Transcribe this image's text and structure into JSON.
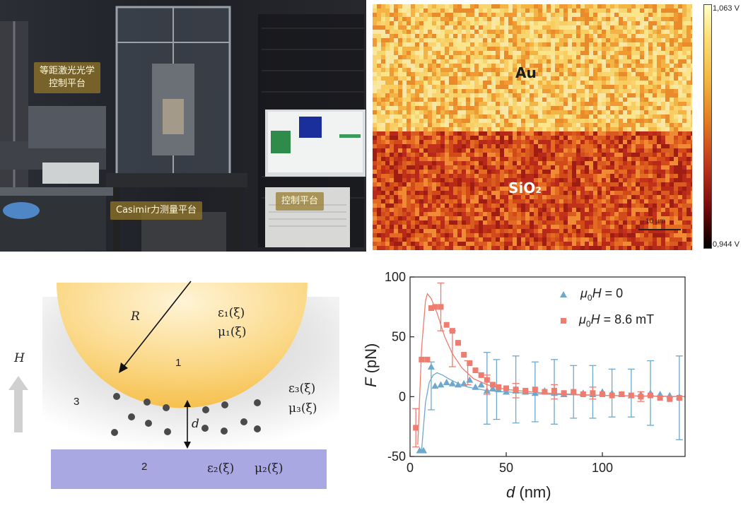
{
  "panelA": {
    "labels": {
      "optics": "等距激光光学\n控制平台",
      "casimir": "Casimir力测量平台",
      "control": "控制平台"
    }
  },
  "panelB": {
    "regions": {
      "top": "Au",
      "bottom": "SiO₂"
    },
    "colorbar": {
      "max": "1,063 V",
      "min": "0,944 V"
    },
    "scalebar": "10 µm",
    "colors": {
      "top_base": "#f6b64a",
      "bottom_base": "#d8501c"
    }
  },
  "panelC": {
    "sphere_number": "1",
    "plate_number": "2",
    "medium_number": "3",
    "radius_label": "R",
    "field_label": "H",
    "gap_label": "d",
    "eps1": "ε₁(ξ)",
    "mu1": "μ₁(ξ)",
    "eps3": "ε₃(ξ)",
    "mu3": "μ₃(ξ)",
    "eps2": "ε₂(ξ)",
    "mu2": "μ₂(ξ)",
    "colors": {
      "sphere": "#f7c968",
      "plate": "#a9a8e3",
      "particles": "#4a4a4a",
      "arrow": "#d0d0d0"
    }
  },
  "chart_data": {
    "type": "scatter",
    "xlabel_var": "d",
    "xlabel_unit": "(nm)",
    "ylabel_var": "F",
    "ylabel_unit": "(pN)",
    "xlim": [
      0,
      143
    ],
    "ylim": [
      -50,
      100
    ],
    "xticks": [
      0,
      50,
      100
    ],
    "yticks": [
      -50,
      0,
      50,
      100
    ],
    "legend_position": "top-right",
    "series": [
      {
        "name_prefix": "μ",
        "name_sub": "0",
        "name_var": "H",
        "name_rest": " = 0",
        "marker": "triangle",
        "color": "#6fa8cd",
        "points": [
          {
            "x": 5,
            "y": -45
          },
          {
            "x": 7,
            "y": -45
          },
          {
            "x": 11,
            "y": 25
          },
          {
            "x": 13,
            "y": 9
          },
          {
            "x": 16,
            "y": 10
          },
          {
            "x": 19,
            "y": 12
          },
          {
            "x": 22,
            "y": 11
          },
          {
            "x": 25,
            "y": 10
          },
          {
            "x": 28,
            "y": 11
          },
          {
            "x": 31,
            "y": 14
          },
          {
            "x": 34,
            "y": 8
          },
          {
            "x": 37,
            "y": 10
          },
          {
            "x": 40,
            "y": 5
          },
          {
            "x": 43,
            "y": 7
          },
          {
            "x": 46,
            "y": 6
          },
          {
            "x": 50,
            "y": 4
          },
          {
            "x": 55,
            "y": 5
          },
          {
            "x": 60,
            "y": 4
          },
          {
            "x": 65,
            "y": 3
          },
          {
            "x": 70,
            "y": 5
          },
          {
            "x": 75,
            "y": 3
          },
          {
            "x": 80,
            "y": 2
          },
          {
            "x": 85,
            "y": 4
          },
          {
            "x": 90,
            "y": 3
          },
          {
            "x": 95,
            "y": 2
          },
          {
            "x": 100,
            "y": 4
          },
          {
            "x": 105,
            "y": 3
          },
          {
            "x": 110,
            "y": 2
          },
          {
            "x": 115,
            "y": 1
          },
          {
            "x": 120,
            "y": 2
          },
          {
            "x": 125,
            "y": 3
          },
          {
            "x": 130,
            "y": 2
          },
          {
            "x": 135,
            "y": 1
          },
          {
            "x": 140,
            "y": 0
          }
        ],
        "errorbars": [
          {
            "x": 11,
            "y": 9,
            "err": 20
          },
          {
            "x": 40,
            "y": 7,
            "err": 30
          },
          {
            "x": 45,
            "y": 6,
            "err": 25
          },
          {
            "x": 55,
            "y": 6,
            "err": 28
          },
          {
            "x": 65,
            "y": 4,
            "err": 25
          },
          {
            "x": 75,
            "y": 4,
            "err": 27
          },
          {
            "x": 85,
            "y": 4,
            "err": 22
          },
          {
            "x": 95,
            "y": 4,
            "err": 22
          },
          {
            "x": 105,
            "y": 3,
            "err": 20
          },
          {
            "x": 115,
            "y": 3,
            "err": 20
          },
          {
            "x": 125,
            "y": 3,
            "err": 27
          },
          {
            "x": 140,
            "y": -1,
            "err": 35
          }
        ],
        "fit": [
          {
            "x": 6,
            "y": -45
          },
          {
            "x": 8,
            "y": -5
          },
          {
            "x": 10,
            "y": 12
          },
          {
            "x": 12,
            "y": 18
          },
          {
            "x": 14,
            "y": 20
          },
          {
            "x": 17,
            "y": 18
          },
          {
            "x": 20,
            "y": 15
          },
          {
            "x": 25,
            "y": 11
          },
          {
            "x": 30,
            "y": 8
          },
          {
            "x": 40,
            "y": 5
          },
          {
            "x": 50,
            "y": 4
          },
          {
            "x": 70,
            "y": 2
          },
          {
            "x": 100,
            "y": 1
          },
          {
            "x": 143,
            "y": 0
          }
        ]
      },
      {
        "name_prefix": "μ",
        "name_sub": "0",
        "name_var": "H",
        "name_rest": " = 8.6 mT",
        "marker": "square",
        "color": "#ee7c6f",
        "points": [
          {
            "x": 3,
            "y": -26
          },
          {
            "x": 6,
            "y": 31
          },
          {
            "x": 9,
            "y": 31
          },
          {
            "x": 11,
            "y": 74
          },
          {
            "x": 13,
            "y": 75
          },
          {
            "x": 16,
            "y": 75
          },
          {
            "x": 19,
            "y": 60
          },
          {
            "x": 22,
            "y": 55
          },
          {
            "x": 25,
            "y": 45
          },
          {
            "x": 28,
            "y": 35
          },
          {
            "x": 31,
            "y": 28
          },
          {
            "x": 34,
            "y": 22
          },
          {
            "x": 37,
            "y": 18
          },
          {
            "x": 40,
            "y": 14
          },
          {
            "x": 43,
            "y": 10
          },
          {
            "x": 46,
            "y": 8
          },
          {
            "x": 50,
            "y": 7
          },
          {
            "x": 55,
            "y": 6
          },
          {
            "x": 60,
            "y": 5
          },
          {
            "x": 65,
            "y": 6
          },
          {
            "x": 70,
            "y": 4
          },
          {
            "x": 75,
            "y": 5
          },
          {
            "x": 80,
            "y": 3
          },
          {
            "x": 85,
            "y": 4
          },
          {
            "x": 90,
            "y": 2
          },
          {
            "x": 95,
            "y": 3
          },
          {
            "x": 100,
            "y": 2
          },
          {
            "x": 105,
            "y": 1
          },
          {
            "x": 110,
            "y": 2
          },
          {
            "x": 115,
            "y": 1
          },
          {
            "x": 120,
            "y": 0
          },
          {
            "x": 125,
            "y": 1
          },
          {
            "x": 130,
            "y": -1
          },
          {
            "x": 135,
            "y": -2
          },
          {
            "x": 140,
            "y": -1
          }
        ],
        "errorbars": [
          {
            "x": 3,
            "y": -26,
            "err": 16
          },
          {
            "x": 16,
            "y": 75,
            "err": 20
          },
          {
            "x": 22,
            "y": 40,
            "err": 15
          },
          {
            "x": 30,
            "y": 20,
            "err": 10
          },
          {
            "x": 40,
            "y": 10,
            "err": 8
          },
          {
            "x": 55,
            "y": 5,
            "err": 6
          },
          {
            "x": 75,
            "y": 4,
            "err": 6
          },
          {
            "x": 95,
            "y": 3,
            "err": 5
          },
          {
            "x": 120,
            "y": 0,
            "err": 4
          }
        ],
        "fit": [
          {
            "x": 4,
            "y": -40
          },
          {
            "x": 6,
            "y": 40
          },
          {
            "x": 8,
            "y": 80
          },
          {
            "x": 9,
            "y": 86
          },
          {
            "x": 11,
            "y": 82
          },
          {
            "x": 14,
            "y": 70
          },
          {
            "x": 18,
            "y": 50
          },
          {
            "x": 22,
            "y": 36
          },
          {
            "x": 27,
            "y": 24
          },
          {
            "x": 33,
            "y": 15
          },
          {
            "x": 40,
            "y": 10
          },
          {
            "x": 50,
            "y": 6
          },
          {
            "x": 70,
            "y": 3
          },
          {
            "x": 100,
            "y": 1
          },
          {
            "x": 143,
            "y": 0
          }
        ]
      }
    ]
  }
}
